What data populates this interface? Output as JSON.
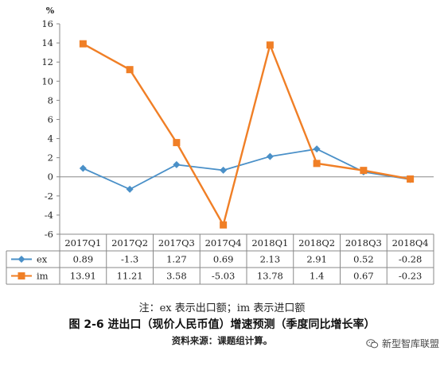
{
  "chart_data": {
    "type": "line",
    "unit_label": "%",
    "categories": [
      "2017Q1",
      "2017Q2",
      "2017Q3",
      "2017Q4",
      "2018Q1",
      "2018Q2",
      "2018Q3",
      "2018Q4"
    ],
    "ylim": [
      -6,
      16
    ],
    "yticks": [
      -6,
      -4,
      -2,
      0,
      2,
      4,
      6,
      8,
      10,
      12,
      14,
      16
    ],
    "grid": false,
    "legend": "table-below",
    "series": [
      {
        "name": "ex",
        "color": "#4a90c8",
        "marker": "diamond",
        "values": [
          0.89,
          -1.3,
          1.27,
          0.69,
          2.13,
          2.91,
          0.52,
          -0.28
        ],
        "labels": [
          "0.89",
          "-1.3",
          "1.27",
          "0.69",
          "2.13",
          "2.91",
          "0.52",
          "-0.28"
        ]
      },
      {
        "name": "im",
        "color": "#f07f26",
        "marker": "square",
        "values": [
          13.91,
          11.21,
          3.58,
          -5.03,
          13.78,
          1.4,
          0.67,
          -0.23
        ],
        "labels": [
          "13.91",
          "11.21",
          "3.58",
          "-5.03",
          "13.78",
          "1.4",
          "0.67",
          "-0.23"
        ]
      }
    ]
  },
  "captions": {
    "note": "注：ex 表示出口额；im 表示进口额",
    "title": "图 2-6  进出口（现价人民币值）增速预测（季度同比增长率）",
    "source": "资料来源：课题组计算。"
  },
  "watermark": {
    "text": "新型智库联盟",
    "icon": "wechat-icon"
  }
}
